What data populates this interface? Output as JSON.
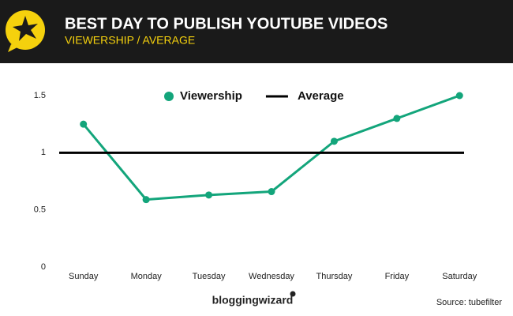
{
  "chart_data": {
    "type": "line",
    "title": "BEST DAY TO PUBLISH YOUTUBE VIDEOS",
    "subtitle": "VIEWERSHIP / AVERAGE",
    "categories": [
      "Sunday",
      "Monday",
      "Tuesday",
      "Wednesday",
      "Thursday",
      "Friday",
      "Saturday"
    ],
    "series": [
      {
        "name": "Viewership",
        "color": "#13a57b",
        "values": [
          1.25,
          0.59,
          0.63,
          0.66,
          1.1,
          1.3,
          1.5
        ],
        "markers": true
      },
      {
        "name": "Average",
        "color": "#000000",
        "values": [
          1,
          1,
          1,
          1,
          1,
          1,
          1
        ],
        "markers": false
      }
    ],
    "ylim": [
      0,
      1.5
    ],
    "yticks": [
      0,
      0.5,
      1,
      1.5
    ],
    "grid": false,
    "legend": "top",
    "brand": "bloggingwizard",
    "source": "Source: tubefilter"
  }
}
